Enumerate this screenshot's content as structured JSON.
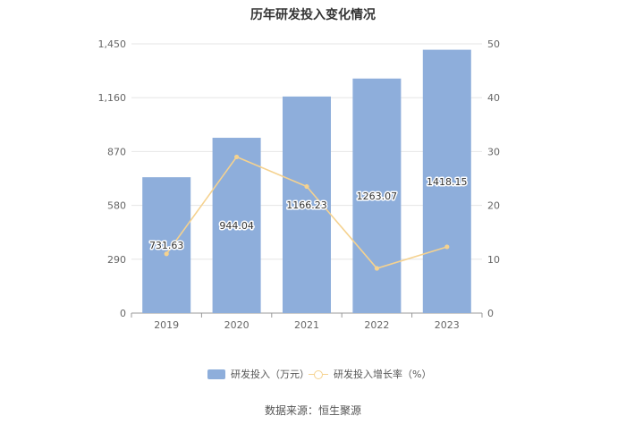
{
  "chart_data": {
    "type": "bar",
    "title": "历年研发投入变化情况",
    "categories": [
      "2019",
      "2020",
      "2021",
      "2022",
      "2023"
    ],
    "series": [
      {
        "name": "研发投入（万元）",
        "type": "bar",
        "axis": "left",
        "color": "#8eaedb",
        "values": [
          731.63,
          944.04,
          1166.23,
          1263.07,
          1418.15
        ],
        "labels": [
          "731.63",
          "944.04",
          "1166.23",
          "1263.07",
          "1418.15"
        ]
      },
      {
        "name": "研发投入增长率（%）",
        "type": "line",
        "axis": "right",
        "color": "#f5d28f",
        "values": [
          11.0,
          29.0,
          23.5,
          8.3,
          12.3
        ]
      }
    ],
    "y_left": {
      "min": 0,
      "max": 1450,
      "ticks": [
        0,
        290,
        580,
        870,
        1160,
        1450
      ],
      "tick_labels": [
        "0",
        "290",
        "580",
        "870",
        "1,160",
        "1,450"
      ]
    },
    "y_right": {
      "min": 0,
      "max": 50,
      "ticks": [
        0,
        10,
        20,
        30,
        40,
        50
      ],
      "tick_labels": [
        "0",
        "10",
        "20",
        "30",
        "40",
        "50"
      ]
    },
    "grid": true,
    "legend_position": "bottom"
  },
  "source": "数据来源：恒生聚源"
}
